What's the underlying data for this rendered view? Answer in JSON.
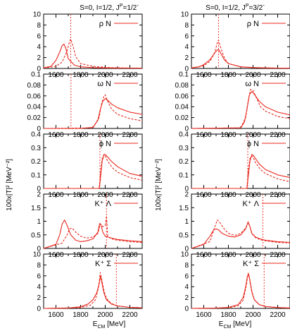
{
  "columns": [
    {
      "title_main": "S=0, I=1/2, J",
      "title_sup1": "P",
      "title_eq": "=1/2",
      "title_sup2": "-"
    },
    {
      "title_main": "S=0, I=1/2, J",
      "title_sup1": "P",
      "title_eq": "=3/2",
      "title_sup2": "-"
    }
  ],
  "y_axis_label": "100x|T|² [MeV⁻²]",
  "x_axis_label": {
    "main": "E",
    "sub": "CM",
    "unit": " [MeV]"
  },
  "x_ticks": [
    "1600",
    "1800",
    "2000",
    "2200"
  ],
  "chart_data": [
    {
      "type": "line",
      "panel": "rho-N-1/2",
      "legend": "ρ N",
      "xlim": [
        1500,
        2300
      ],
      "ylim": [
        0,
        10
      ],
      "yticks": [
        "0",
        "2",
        "4",
        "6",
        "8",
        "10"
      ],
      "color": "#e8281e",
      "vline": 1720,
      "series": [
        {
          "style": "solid",
          "x": [
            1500,
            1560,
            1600,
            1630,
            1650,
            1665,
            1680,
            1700,
            1750,
            1800,
            1900,
            2000,
            2100,
            2200,
            2300
          ],
          "y": [
            0.1,
            0.4,
            1.5,
            3.0,
            4.2,
            4.5,
            3.7,
            1.8,
            0.6,
            0.3,
            0.15,
            0.1,
            0.08,
            0.06,
            0.05
          ]
        },
        {
          "style": "dashed",
          "x": [
            1500,
            1600,
            1650,
            1690,
            1710,
            1720,
            1740,
            1760,
            1800,
            1900,
            2000,
            2100,
            2200,
            2300
          ],
          "y": [
            0.05,
            0.4,
            1.2,
            3.2,
            5.0,
            5.4,
            4.0,
            2.2,
            0.9,
            0.4,
            0.2,
            0.12,
            0.08,
            0.06
          ]
        }
      ]
    },
    {
      "type": "line",
      "panel": "rho-N-3/2",
      "legend": "ρ N",
      "xlim": [
        1500,
        2300
      ],
      "ylim": [
        0,
        10
      ],
      "yticks": [
        "0",
        "2",
        "4",
        "6",
        "8",
        "10"
      ],
      "color": "#e8281e",
      "vline": 1720,
      "series": [
        {
          "style": "solid",
          "x": [
            1500,
            1560,
            1600,
            1650,
            1690,
            1710,
            1720,
            1740,
            1770,
            1800,
            1900,
            2000,
            2100,
            2200,
            2300
          ],
          "y": [
            0.1,
            0.3,
            0.7,
            1.6,
            2.9,
            3.4,
            3.5,
            2.7,
            1.5,
            0.9,
            0.3,
            0.15,
            0.1,
            0.07,
            0.05
          ]
        },
        {
          "style": "dashed",
          "x": [
            1500,
            1600,
            1650,
            1690,
            1710,
            1720,
            1740,
            1770,
            1800,
            1900,
            2000,
            2100,
            2200,
            2300
          ],
          "y": [
            0.05,
            0.5,
            1.3,
            3.0,
            4.8,
            5.2,
            3.6,
            1.8,
            0.9,
            0.3,
            0.15,
            0.1,
            0.07,
            0.05
          ]
        }
      ]
    },
    {
      "type": "line",
      "panel": "omega-N-1/2",
      "legend": "ω N",
      "xlim": [
        1500,
        2300
      ],
      "ylim": [
        0,
        0.1
      ],
      "yticks": [
        "0",
        "0.02",
        "0.04",
        "0.06",
        "0.08",
        "0.1"
      ],
      "color": "#e8281e",
      "vline": 1722,
      "series": [
        {
          "style": "solid",
          "x": [
            1500,
            1800,
            1900,
            1940,
            1960,
            1980,
            2000,
            2020,
            2050,
            2100,
            2200,
            2300
          ],
          "y": [
            0,
            0,
            0.002,
            0.015,
            0.035,
            0.05,
            0.055,
            0.052,
            0.045,
            0.038,
            0.03,
            0.026
          ]
        },
        {
          "style": "dashed",
          "x": [
            1500,
            1900,
            1950,
            1970,
            1990,
            2000,
            2020,
            2050,
            2100,
            2200,
            2300
          ],
          "y": [
            0,
            0.001,
            0.02,
            0.045,
            0.06,
            0.062,
            0.05,
            0.036,
            0.026,
            0.018,
            0.014
          ]
        }
      ]
    },
    {
      "type": "line",
      "panel": "omega-N-3/2",
      "legend": "ω N",
      "xlim": [
        1500,
        2300
      ],
      "ylim": [
        0,
        0.1
      ],
      "yticks": [
        "0",
        "0.02",
        "0.04",
        "0.06",
        "0.08",
        "0.1"
      ],
      "color": "#e8281e",
      "vline": null,
      "series": [
        {
          "style": "solid",
          "x": [
            1500,
            1900,
            1930,
            1950,
            1970,
            1990,
            2010,
            2050,
            2100,
            2200,
            2300
          ],
          "y": [
            0,
            0.001,
            0.012,
            0.035,
            0.062,
            0.068,
            0.063,
            0.05,
            0.04,
            0.03,
            0.025
          ]
        },
        {
          "style": "dashed",
          "x": [
            1500,
            1900,
            1940,
            1960,
            1980,
            2000,
            2030,
            2060,
            2100,
            2200,
            2300
          ],
          "y": [
            0,
            0.001,
            0.02,
            0.05,
            0.072,
            0.07,
            0.055,
            0.04,
            0.032,
            0.022,
            0.018
          ]
        }
      ]
    },
    {
      "type": "line",
      "panel": "phi-N-1/2",
      "legend": "ϕ N",
      "xlim": [
        1500,
        2300
      ],
      "ylim": [
        0,
        0.4
      ],
      "yticks": [
        "0",
        "0.1",
        "0.2",
        "0.3",
        "0.4"
      ],
      "color": "#e8281e",
      "vline": 1957,
      "series": [
        {
          "style": "solid",
          "x": [
            1500,
            1950,
            1960,
            1975,
            1990,
            2000,
            2020,
            2050,
            2100,
            2200,
            2300
          ],
          "y": [
            0,
            0,
            0.06,
            0.2,
            0.25,
            0.25,
            0.23,
            0.2,
            0.16,
            0.11,
            0.09
          ]
        },
        {
          "style": "dashed",
          "x": [
            1500,
            1950,
            1960,
            1975,
            1990,
            2000,
            2020,
            2060,
            2100,
            2200,
            2300
          ],
          "y": [
            0,
            0,
            0.1,
            0.22,
            0.25,
            0.24,
            0.2,
            0.15,
            0.12,
            0.08,
            0.06
          ]
        }
      ]
    },
    {
      "type": "line",
      "panel": "phi-N-3/2",
      "legend": "ϕ N",
      "xlim": [
        1500,
        2300
      ],
      "ylim": [
        0,
        0.4
      ],
      "yticks": [
        "0",
        "0.1",
        "0.2",
        "0.3",
        "0.4"
      ],
      "color": "#e8281e",
      "vline": 1957,
      "series": [
        {
          "style": "solid",
          "x": [
            1500,
            1950,
            1960,
            1975,
            1990,
            2000,
            2020,
            2050,
            2100,
            2200,
            2300
          ],
          "y": [
            0,
            0,
            0.08,
            0.2,
            0.25,
            0.245,
            0.22,
            0.18,
            0.14,
            0.1,
            0.08
          ]
        },
        {
          "style": "dashed",
          "x": [
            1500,
            1950,
            1960,
            1975,
            1990,
            2000,
            2020,
            2060,
            2100,
            2200,
            2300
          ],
          "y": [
            0,
            0,
            0.12,
            0.22,
            0.24,
            0.23,
            0.19,
            0.14,
            0.11,
            0.07,
            0.05
          ]
        }
      ]
    },
    {
      "type": "line",
      "panel": "KLambda-1/2",
      "legend": "K⁺ Λ",
      "xlim": [
        1500,
        2300
      ],
      "ylim": [
        0,
        2
      ],
      "yticks": [
        "0",
        "0.5",
        "1",
        "1.5",
        "2"
      ],
      "color": "#e8281e",
      "vline": 2010,
      "series": [
        {
          "style": "solid",
          "x": [
            1500,
            1600,
            1630,
            1650,
            1670,
            1690,
            1720,
            1760,
            1800,
            1850,
            1900,
            1940,
            1955,
            1965,
            1980,
            2000,
            2050,
            2100,
            2200,
            2300
          ],
          "y": [
            0,
            0.15,
            0.5,
            0.9,
            1.05,
            0.85,
            0.5,
            0.3,
            0.25,
            0.28,
            0.35,
            0.6,
            0.92,
            0.88,
            0.6,
            0.45,
            0.38,
            0.33,
            0.28,
            0.25
          ]
        },
        {
          "style": "dashed",
          "x": [
            1500,
            1650,
            1690,
            1710,
            1730,
            1760,
            1800,
            1850,
            1900,
            1940,
            1960,
            1980,
            2000,
            2010,
            2020,
            2050,
            2100,
            2200,
            2300
          ],
          "y": [
            0,
            0.2,
            0.5,
            0.72,
            0.75,
            0.6,
            0.45,
            0.38,
            0.42,
            0.55,
            0.9,
            0.8,
            0.85,
            1.2,
            0.45,
            0.35,
            0.3,
            0.25,
            0.22
          ]
        }
      ]
    },
    {
      "type": "line",
      "panel": "KLambda-3/2",
      "legend": "K⁺ Λ",
      "xlim": [
        1500,
        2300
      ],
      "ylim": [
        0,
        2
      ],
      "yticks": [
        "0",
        "0.5",
        "1",
        "1.5",
        "2"
      ],
      "color": "#e8281e",
      "vline": 2080,
      "series": [
        {
          "style": "solid",
          "x": [
            1500,
            1600,
            1650,
            1680,
            1700,
            1720,
            1750,
            1800,
            1850,
            1900,
            1940,
            1960,
            1975,
            1990,
            2020,
            2050,
            2100,
            2200,
            2300
          ],
          "y": [
            0,
            0.15,
            0.45,
            0.68,
            0.72,
            0.68,
            0.55,
            0.45,
            0.42,
            0.5,
            0.72,
            0.98,
            0.8,
            0.55,
            0.42,
            0.36,
            0.3,
            0.25,
            0.22
          ]
        },
        {
          "style": "dashed",
          "x": [
            1500,
            1650,
            1690,
            1710,
            1730,
            1760,
            1800,
            1850,
            1900,
            1940,
            1960,
            1975,
            1990,
            2020,
            2060,
            2100,
            2200,
            2300
          ],
          "y": [
            0,
            0.25,
            0.8,
            1.05,
            0.95,
            0.75,
            0.55,
            0.48,
            0.55,
            0.75,
            0.95,
            0.8,
            0.55,
            0.4,
            0.32,
            0.28,
            0.22,
            0.2
          ]
        }
      ]
    },
    {
      "type": "line",
      "panel": "KSigma-1/2",
      "legend": "K⁺ Σ",
      "xlim": [
        1500,
        2300
      ],
      "ylim": [
        0,
        10
      ],
      "yticks": [
        "0",
        "2",
        "4",
        "6",
        "8",
        "10"
      ],
      "color": "#e8281e",
      "vline": 2090,
      "series": [
        {
          "style": "solid",
          "x": [
            1500,
            1700,
            1800,
            1860,
            1900,
            1930,
            1950,
            1962,
            1975,
            1990,
            2010,
            2050,
            2100,
            2200,
            2300
          ],
          "y": [
            0,
            0.05,
            0.3,
            0.8,
            1.6,
            2.8,
            4.5,
            6.0,
            4.5,
            2.8,
            1.6,
            0.8,
            0.45,
            0.2,
            0.1
          ]
        },
        {
          "style": "dashed",
          "x": [
            1500,
            1800,
            1880,
            1920,
            1945,
            1960,
            1975,
            1990,
            2010,
            2050,
            2100,
            2200,
            2300
          ],
          "y": [
            0,
            0.15,
            0.6,
            1.6,
            3.8,
            6.6,
            5.0,
            3.2,
            1.8,
            0.9,
            0.45,
            0.2,
            0.1
          ]
        }
      ]
    },
    {
      "type": "line",
      "panel": "KSigma-3/2",
      "legend": "K⁺ Σ",
      "xlim": [
        1500,
        2300
      ],
      "ylim": [
        0,
        10
      ],
      "yticks": [
        "0",
        "2",
        "4",
        "6",
        "8",
        "10"
      ],
      "color": "#e8281e",
      "vline": 2090,
      "series": [
        {
          "style": "solid",
          "x": [
            1500,
            1700,
            1800,
            1880,
            1920,
            1940,
            1955,
            1965,
            1975,
            1990,
            2010,
            2050,
            2100,
            2200,
            2300
          ],
          "y": [
            0,
            0.05,
            0.2,
            0.7,
            2.0,
            4.0,
            6.0,
            6.3,
            5.0,
            3.0,
            1.6,
            0.7,
            0.35,
            0.15,
            0.08
          ]
        },
        {
          "style": "dashed",
          "x": [
            1500,
            1800,
            1880,
            1920,
            1945,
            1960,
            1975,
            1990,
            2010,
            2050,
            2100,
            2200,
            2300
          ],
          "y": [
            0,
            0.1,
            0.5,
            1.5,
            4.2,
            6.5,
            5.2,
            3.2,
            1.6,
            0.7,
            0.35,
            0.15,
            0.08
          ]
        }
      ]
    }
  ]
}
